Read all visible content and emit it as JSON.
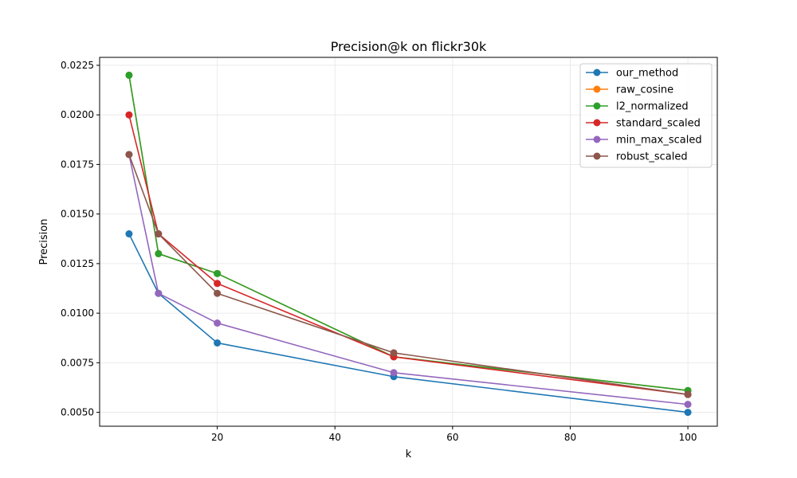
{
  "chart_data": {
    "type": "line",
    "title": "Precision@k on flickr30k",
    "xlabel": "k",
    "ylabel": "Precision",
    "x": [
      5,
      10,
      20,
      50,
      100
    ],
    "xlim": [
      0,
      105
    ],
    "ylim": [
      0.0043,
      0.0229
    ],
    "xticks": [
      20,
      40,
      60,
      80,
      100
    ],
    "yticks": [
      0.005,
      0.0075,
      0.01,
      0.0125,
      0.015,
      0.0175,
      0.02,
      0.0225
    ],
    "xtick_labels": [
      "20",
      "40",
      "60",
      "80",
      "100"
    ],
    "ytick_labels": [
      "0.0050",
      "0.0075",
      "0.0100",
      "0.0125",
      "0.0150",
      "0.0175",
      "0.0200",
      "0.0225"
    ],
    "grid": true,
    "legend_position": "top-right",
    "series": [
      {
        "name": "our_method",
        "color": "#1f77b4",
        "values": [
          0.014,
          0.011,
          0.0085,
          0.0068,
          0.005
        ]
      },
      {
        "name": "raw_cosine",
        "color": "#ff7f0e",
        "values": [
          0.022,
          0.013,
          0.012,
          0.0078,
          0.0061
        ]
      },
      {
        "name": "l2_normalized",
        "color": "#2ca02c",
        "values": [
          0.022,
          0.013,
          0.012,
          0.0078,
          0.0061
        ]
      },
      {
        "name": "standard_scaled",
        "color": "#d62728",
        "values": [
          0.02,
          0.014,
          0.0115,
          0.0078,
          0.0059
        ]
      },
      {
        "name": "min_max_scaled",
        "color": "#9467bd",
        "values": [
          0.018,
          0.011,
          0.0095,
          0.007,
          0.0054
        ]
      },
      {
        "name": "robust_scaled",
        "color": "#8c564b",
        "values": [
          0.018,
          0.014,
          0.011,
          0.008,
          0.0059
        ]
      }
    ]
  }
}
